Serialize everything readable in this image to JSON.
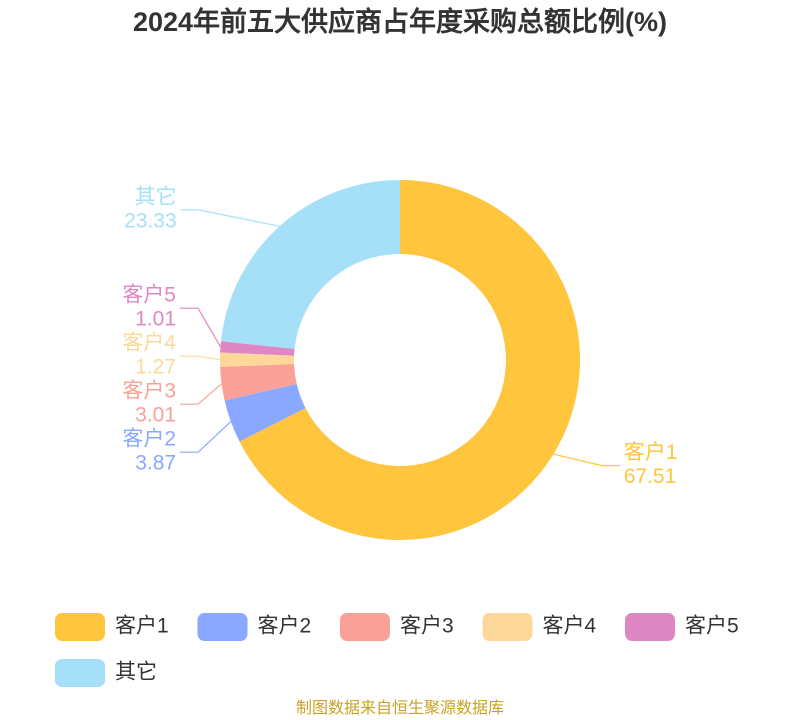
{
  "chart_data": {
    "type": "donut",
    "title": "2024年前五大供应商占年度采购总额比例(%)",
    "categories": [
      "客户1",
      "客户2",
      "客户3",
      "客户4",
      "客户5",
      "其它"
    ],
    "values": [
      67.51,
      3.87,
      3.01,
      1.27,
      1.01,
      23.33
    ],
    "colors": [
      "#ffc53d",
      "#8aa8ff",
      "#f9a198",
      "#fdd89a",
      "#dd88c4",
      "#a6e0f8"
    ],
    "source": "制图数据来自恒生聚源数据库"
  }
}
